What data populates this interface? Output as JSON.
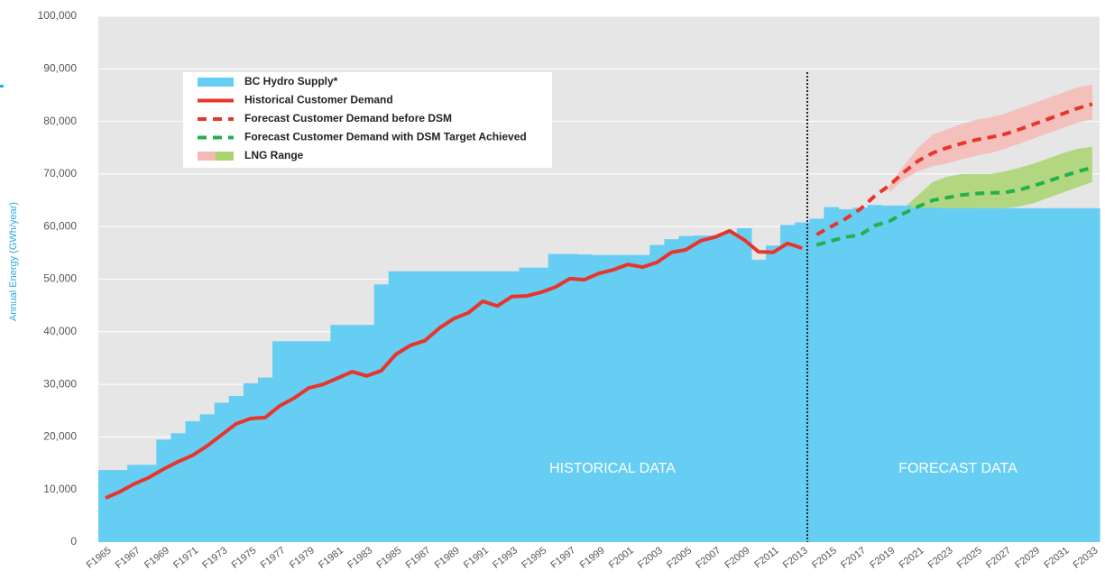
{
  "chart_data": {
    "type": "line",
    "y_label": "Annual Energy (GWh/year)",
    "annotations": [
      "HISTORICAL DATA",
      "FORECAST DATA"
    ],
    "categories": [
      "F1965",
      null,
      "F1967",
      null,
      "F1969",
      null,
      "F1971",
      null,
      "F1973",
      null,
      "F1975",
      null,
      "F1977",
      null,
      "F1979",
      null,
      "F1981",
      null,
      "F1983",
      null,
      "F1985",
      null,
      "F1987",
      null,
      "F1989",
      null,
      "F1991",
      null,
      "F1993",
      null,
      "F1995",
      null,
      "F1997",
      null,
      "F1999",
      null,
      "F2001",
      null,
      "F2003",
      null,
      "F2005",
      null,
      "F2007",
      null,
      "F2009",
      null,
      "F2011",
      null,
      "F2013",
      null,
      "F2015",
      null,
      "F2017",
      null,
      "F2019",
      null,
      "F2021",
      null,
      "F2023",
      null,
      "F2025",
      null,
      "F2027",
      null,
      "F2029",
      null,
      "F2031",
      null,
      "F2033"
    ],
    "ylim": [
      0,
      100000
    ],
    "yticks": [
      0,
      {
        "value": 10000,
        "label": "10,000"
      },
      {
        "value": 20000,
        "label": "20,000"
      },
      {
        "value": 30000,
        "label": "30,000"
      },
      {
        "value": 40000,
        "label": "40,000"
      },
      {
        "value": 50000,
        "label": "50,000"
      },
      {
        "value": 60000,
        "label": "60,000"
      },
      {
        "value": 70000,
        "label": "70,000"
      },
      {
        "value": 80000,
        "label": "80,000"
      },
      {
        "value": 90000,
        "label": "90,000"
      },
      {
        "value": 100000,
        "label": "100,000"
      }
    ],
    "grid": true,
    "series": [
      {
        "name": "BC Hydro Supply*",
        "kind": "step-area",
        "color": "#66cdf3",
        "values": [
          13700,
          13700,
          14700,
          14700,
          19500,
          20700,
          23000,
          24300,
          26500,
          27800,
          30200,
          31300,
          38200,
          38200,
          38200,
          38200,
          41300,
          41300,
          41300,
          49000,
          51500,
          51500,
          51500,
          51500,
          51500,
          51500,
          51500,
          51500,
          51500,
          52200,
          52200,
          54800,
          54800,
          54700,
          54600,
          54600,
          54600,
          54600,
          56500,
          57600,
          58200,
          58300,
          58300,
          58800,
          59700,
          53700,
          56400,
          60300,
          60800,
          61500,
          63700,
          63300,
          63600,
          64100,
          64000,
          64000,
          63600,
          63600,
          63500,
          63500,
          63500,
          63500,
          63500,
          63500,
          63500,
          63500,
          63500,
          63500,
          63500
        ]
      },
      {
        "name": "Historical Customer Demand",
        "kind": "line",
        "color": "#e8352b",
        "dashed": false,
        "values": [
          8400,
          9600,
          11100,
          12300,
          13900,
          15300,
          16500,
          18300,
          20400,
          22500,
          23500,
          23700,
          25900,
          27400,
          29300,
          30000,
          31200,
          32400,
          31600,
          32600,
          35700,
          37400,
          38300,
          40700,
          42500,
          43600,
          45800,
          44900,
          46700,
          46800,
          47500,
          48500,
          50100,
          49900,
          51100,
          51800,
          52800,
          52300,
          53200,
          55100,
          55600,
          57300,
          58000,
          59200,
          57500,
          55200,
          55100,
          56800,
          55900,
          null,
          null,
          null,
          null,
          null,
          null,
          null,
          null,
          null,
          null,
          null,
          null,
          null,
          null,
          null,
          null,
          null,
          null,
          null,
          null
        ]
      },
      {
        "name": "Forecast Customer Demand before DSM",
        "kind": "line",
        "color": "#e8352b",
        "dashed": true,
        "values": [
          null,
          null,
          null,
          null,
          null,
          null,
          null,
          null,
          null,
          null,
          null,
          null,
          null,
          null,
          null,
          null,
          null,
          null,
          null,
          null,
          null,
          null,
          null,
          null,
          null,
          null,
          null,
          null,
          null,
          null,
          null,
          null,
          null,
          null,
          null,
          null,
          null,
          null,
          null,
          null,
          null,
          null,
          null,
          null,
          null,
          null,
          null,
          null,
          null,
          58500,
          60000,
          61500,
          63300,
          65800,
          67800,
          70300,
          72500,
          74000,
          75000,
          75800,
          76500,
          77000,
          77600,
          78500,
          79500,
          80500,
          81500,
          82500,
          83300
        ]
      },
      {
        "name": "Forecast Customer Demand with DSM Target Achieved",
        "kind": "line",
        "color": "#22b14c",
        "dashed": true,
        "values": [
          null,
          null,
          null,
          null,
          null,
          null,
          null,
          null,
          null,
          null,
          null,
          null,
          null,
          null,
          null,
          null,
          null,
          null,
          null,
          null,
          null,
          null,
          null,
          null,
          null,
          null,
          null,
          null,
          null,
          null,
          null,
          null,
          null,
          null,
          null,
          null,
          null,
          null,
          null,
          null,
          null,
          null,
          null,
          null,
          null,
          null,
          null,
          null,
          null,
          56500,
          57300,
          58000,
          58400,
          60200,
          61000,
          62500,
          63800,
          65000,
          65500,
          66000,
          66300,
          66400,
          66500,
          67000,
          67800,
          68700,
          69600,
          70500,
          71200
        ]
      }
    ],
    "lng_range": {
      "name": "LNG Range",
      "bands": [
        {
          "color": "#f4b9b4",
          "high": [
            null,
            null,
            null,
            null,
            null,
            null,
            null,
            null,
            null,
            null,
            null,
            null,
            null,
            null,
            null,
            null,
            null,
            null,
            null,
            null,
            null,
            null,
            null,
            null,
            null,
            null,
            null,
            null,
            null,
            null,
            null,
            null,
            null,
            null,
            null,
            null,
            null,
            null,
            null,
            null,
            null,
            null,
            null,
            null,
            null,
            null,
            null,
            null,
            null,
            null,
            null,
            null,
            null,
            null,
            67800,
            71500,
            75000,
            77500,
            78500,
            79500,
            80300,
            80800,
            81500,
            82500,
            83500,
            84500,
            85500,
            86500,
            87000
          ],
          "low": [
            null,
            null,
            null,
            null,
            null,
            null,
            null,
            null,
            null,
            null,
            null,
            null,
            null,
            null,
            null,
            null,
            null,
            null,
            null,
            null,
            null,
            null,
            null,
            null,
            null,
            null,
            null,
            null,
            null,
            null,
            null,
            null,
            null,
            null,
            null,
            null,
            null,
            null,
            null,
            null,
            null,
            null,
            null,
            null,
            null,
            null,
            null,
            null,
            null,
            null,
            null,
            null,
            null,
            null,
            66500,
            69000,
            70500,
            71500,
            72000,
            72800,
            73500,
            74000,
            74800,
            75800,
            76800,
            77800,
            78800,
            79800,
            80400
          ]
        },
        {
          "color": "#a9d46f",
          "high": [
            null,
            null,
            null,
            null,
            null,
            null,
            null,
            null,
            null,
            null,
            null,
            null,
            null,
            null,
            null,
            null,
            null,
            null,
            null,
            null,
            null,
            null,
            null,
            null,
            null,
            null,
            null,
            null,
            null,
            null,
            null,
            null,
            null,
            null,
            null,
            null,
            null,
            null,
            null,
            null,
            null,
            null,
            null,
            null,
            null,
            null,
            null,
            null,
            null,
            null,
            null,
            null,
            null,
            null,
            62000,
            63500,
            66000,
            68500,
            69500,
            70000,
            70000,
            70000,
            70500,
            71200,
            72000,
            73000,
            74000,
            74800,
            75200
          ],
          "low": [
            null,
            null,
            null,
            null,
            null,
            null,
            null,
            null,
            null,
            null,
            null,
            null,
            null,
            null,
            null,
            null,
            null,
            null,
            null,
            null,
            null,
            null,
            null,
            null,
            null,
            null,
            null,
            null,
            null,
            null,
            null,
            null,
            null,
            null,
            null,
            null,
            null,
            null,
            null,
            null,
            null,
            null,
            null,
            null,
            null,
            null,
            null,
            null,
            null,
            null,
            null,
            null,
            null,
            null,
            61000,
            61500,
            62000,
            62200,
            62800,
            63200,
            63500,
            63500,
            63500,
            63800,
            64500,
            65500,
            66500,
            67500,
            68500
          ]
        }
      ]
    }
  }
}
